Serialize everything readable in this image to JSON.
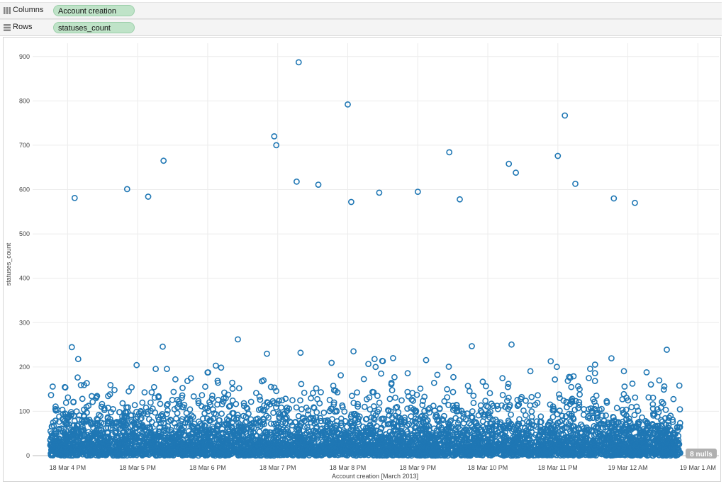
{
  "shelves": {
    "columns": {
      "label": "Columns",
      "pill": "Account creation"
    },
    "rows": {
      "label": "Rows",
      "pill": "statuses_count"
    }
  },
  "colors": {
    "mark": "#1f77b4",
    "grid": "#ececec",
    "badge": "#b0b0b0"
  },
  "null_badge": "8 nulls",
  "chart_data": {
    "type": "scatter",
    "xlabel": "Account creation [March 2013]",
    "ylabel": "statuses_count",
    "x_ticks": [
      "18 Mar 4 PM",
      "18 Mar 5 PM",
      "18 Mar 6 PM",
      "18 Mar 7 PM",
      "18 Mar 8 PM",
      "18 Mar 9 PM",
      "18 Mar 10 PM",
      "18 Mar 11 PM",
      "19 Mar 12 AM",
      "19 Mar 1 AM"
    ],
    "x_range_hours": [
      15.5,
      25.3
    ],
    "y_ticks": [
      0,
      100,
      200,
      300,
      400,
      500,
      600,
      700,
      800,
      900
    ],
    "ylim": [
      0,
      930
    ],
    "grid": true,
    "marker": "hollow-circle",
    "notable_points": [
      {
        "x_hour": 19.3,
        "y": 887
      },
      {
        "x_hour": 20.0,
        "y": 792
      },
      {
        "x_hour": 23.1,
        "y": 767
      },
      {
        "x_hour": 18.95,
        "y": 720
      },
      {
        "x_hour": 18.98,
        "y": 700
      },
      {
        "x_hour": 21.45,
        "y": 684
      },
      {
        "x_hour": 23.0,
        "y": 676
      },
      {
        "x_hour": 17.37,
        "y": 665
      },
      {
        "x_hour": 22.3,
        "y": 658
      },
      {
        "x_hour": 22.4,
        "y": 638
      },
      {
        "x_hour": 19.27,
        "y": 618
      },
      {
        "x_hour": 23.25,
        "y": 613
      },
      {
        "x_hour": 19.58,
        "y": 611
      },
      {
        "x_hour": 16.85,
        "y": 601
      },
      {
        "x_hour": 20.45,
        "y": 593
      },
      {
        "x_hour": 21.0,
        "y": 595
      },
      {
        "x_hour": 23.8,
        "y": 580
      },
      {
        "x_hour": 24.1,
        "y": 570
      },
      {
        "x_hour": 17.15,
        "y": 584
      },
      {
        "x_hour": 16.1,
        "y": 581
      },
      {
        "x_hour": 20.05,
        "y": 572
      },
      {
        "x_hour": 21.6,
        "y": 578
      }
    ],
    "dense_band": "Heavy concentration of points from 0 to about 100 across the whole time range, thinning out above 200"
  }
}
